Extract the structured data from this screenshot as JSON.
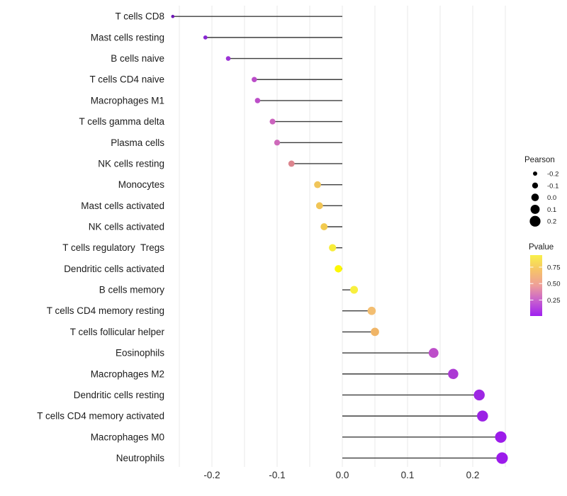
{
  "chart_data": {
    "type": "lollipop",
    "title": "",
    "xlabel": "",
    "ylabel": "",
    "xlim": [
      -0.27,
      0.27
    ],
    "grid_step": 0.05,
    "x_tick_labels": [
      "-0.2",
      "-0.1",
      "0.0",
      "0.1",
      "0.2"
    ],
    "x_tick_values": [
      -0.2,
      -0.1,
      0.0,
      0.1,
      0.2
    ],
    "grid_on": true,
    "rows": [
      {
        "label": "T cells CD8",
        "pearson": -0.26,
        "color": "#6E16B5"
      },
      {
        "label": "Mast cells resting",
        "pearson": -0.21,
        "color": "#8826D3"
      },
      {
        "label": "B cells naive",
        "pearson": -0.175,
        "color": "#9C33D6"
      },
      {
        "label": "T cells CD4 naive",
        "pearson": -0.135,
        "color": "#BB4CC9"
      },
      {
        "label": "Macrophages M1",
        "pearson": -0.13,
        "color": "#BC4EC8"
      },
      {
        "label": "T cells gamma delta",
        "pearson": -0.107,
        "color": "#CB63BE"
      },
      {
        "label": "Plasma cells",
        "pearson": -0.1,
        "color": "#CE6ABA"
      },
      {
        "label": "NK cells resting",
        "pearson": -0.078,
        "color": "#DC858E"
      },
      {
        "label": "Monocytes",
        "pearson": -0.038,
        "color": "#F0C55A"
      },
      {
        "label": "Mast cells activated",
        "pearson": -0.035,
        "color": "#F1C556"
      },
      {
        "label": "NK cells activated",
        "pearson": -0.028,
        "color": "#F2CA4F"
      },
      {
        "label": "T cells regulatory  Tregs",
        "pearson": -0.015,
        "color": "#F8ED3A"
      },
      {
        "label": "Dendritic cells activated",
        "pearson": -0.006,
        "color": "#FDF803"
      },
      {
        "label": "B cells memory",
        "pearson": 0.018,
        "color": "#F8EF3E"
      },
      {
        "label": "T cells CD4 memory resting",
        "pearson": 0.045,
        "color": "#F3BE71"
      },
      {
        "label": "T cells follicular helper",
        "pearson": 0.05,
        "color": "#F0B567"
      },
      {
        "label": "Eosinophils",
        "pearson": 0.14,
        "color": "#BD4EC9"
      },
      {
        "label": "Macrophages M2",
        "pearson": 0.17,
        "color": "#AC39D4"
      },
      {
        "label": "Dendritic cells resting",
        "pearson": 0.21,
        "color": "#9D27E3"
      },
      {
        "label": "T cells CD4 memory activated",
        "pearson": 0.215,
        "color": "#9B22E5"
      },
      {
        "label": "Macrophages M0",
        "pearson": 0.243,
        "color": "#9C1CEA"
      },
      {
        "label": "Neutrophils",
        "pearson": 0.245,
        "color": "#9C1BEB"
      }
    ],
    "legend": {
      "size": {
        "title": "Pearson",
        "items": [
          {
            "label": "-0.2",
            "value": -0.2
          },
          {
            "label": "-0.1",
            "value": -0.1
          },
          {
            "label": "0.0",
            "value": 0.0
          },
          {
            "label": "0.1",
            "value": 0.1
          },
          {
            "label": "0.2",
            "value": 0.2
          }
        ],
        "dot_color": "#000000"
      },
      "color": {
        "title": "Pvalue",
        "tick_labels": [
          "0.75",
          "0.50",
          "0.25"
        ],
        "gradient_bottom_to_top": [
          "#A020F0",
          "#C760CE",
          "#EE9E9A",
          "#F6C369",
          "#F8F04A"
        ]
      },
      "position": "right"
    },
    "stick_color": "#3d3d3d",
    "grid_color": "#e9e9e9"
  }
}
